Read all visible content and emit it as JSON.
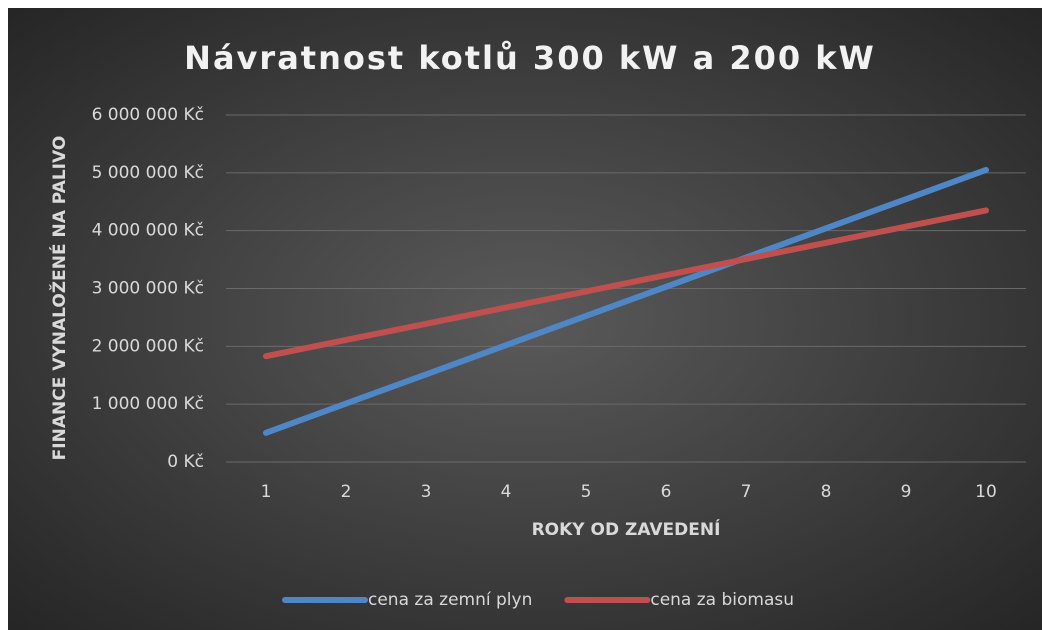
{
  "chart_data": {
    "type": "line",
    "title": "Návratnost kotlů 300 kW a 200 kW",
    "x_label": "ROKY OD ZAVEDENÍ",
    "y_label": "FINANCE VYNALOŽENÉ NA PALIVO",
    "categories": [
      "1",
      "2",
      "3",
      "4",
      "5",
      "6",
      "7",
      "8",
      "9",
      "10"
    ],
    "series": [
      {
        "name": "cena za zemní plyn",
        "color": "#4f86c6",
        "values": [
          505000,
          1010000,
          1515000,
          2020000,
          2525000,
          3030000,
          3535000,
          4040000,
          4545000,
          5050000
        ]
      },
      {
        "name": "cena za biomasu",
        "color": "#c0504d",
        "values": [
          1830000,
          2110000,
          2390000,
          2670000,
          2950000,
          3230000,
          3510000,
          3790000,
          4070000,
          4350000
        ]
      }
    ],
    "ylim": [
      0,
      6000000
    ],
    "yticks": [
      {
        "value": 0,
        "label": "0 Kč"
      },
      {
        "value": 1000000,
        "label": "1 000 000 Kč"
      },
      {
        "value": 2000000,
        "label": "2 000 000 Kč"
      },
      {
        "value": 3000000,
        "label": "3 000 000 Kč"
      },
      {
        "value": 4000000,
        "label": "4 000 000 Kč"
      },
      {
        "value": 5000000,
        "label": "5 000 000 Kč"
      },
      {
        "value": 6000000,
        "label": "6 000 000 Kč"
      }
    ],
    "grid": true,
    "legend": "bottom"
  }
}
